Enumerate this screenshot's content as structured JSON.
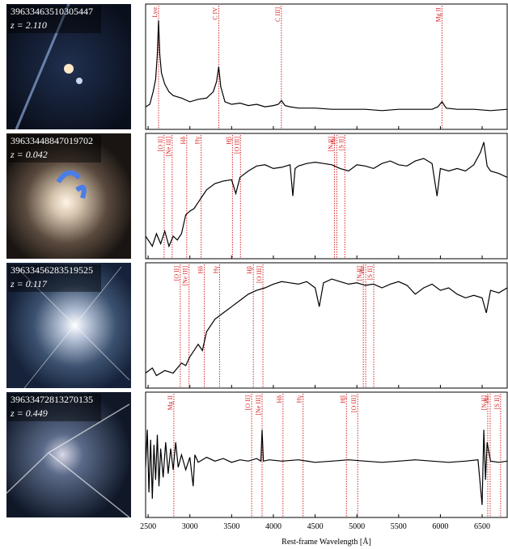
{
  "chart_data": [
    {
      "type": "line",
      "id": "39633463510305447",
      "redshift": "z = 2.110",
      "xlim": [
        2470,
        6800
      ],
      "ylim": [
        0,
        1
      ],
      "color": "#000000",
      "x": [
        2470,
        2520,
        2560,
        2590,
        2610,
        2625,
        2640,
        2660,
        2700,
        2750,
        2800,
        2900,
        3000,
        3100,
        3200,
        3280,
        3320,
        3346,
        3370,
        3420,
        3500,
        3600,
        3700,
        3800,
        3900,
        4000,
        4060,
        4096,
        4140,
        4200,
        4300,
        4500,
        4700,
        4900,
        5100,
        5300,
        5500,
        5700,
        5900,
        5970,
        6019,
        6070,
        6200,
        6400,
        6600,
        6800
      ],
      "values": [
        0.18,
        0.2,
        0.3,
        0.4,
        0.6,
        0.87,
        0.6,
        0.45,
        0.36,
        0.3,
        0.27,
        0.25,
        0.22,
        0.24,
        0.25,
        0.3,
        0.38,
        0.5,
        0.34,
        0.22,
        0.2,
        0.21,
        0.19,
        0.2,
        0.18,
        0.19,
        0.2,
        0.23,
        0.19,
        0.18,
        0.17,
        0.17,
        0.16,
        0.16,
        0.16,
        0.15,
        0.16,
        0.16,
        0.16,
        0.18,
        0.22,
        0.17,
        0.16,
        0.16,
        0.15,
        0.16
      ],
      "lines": [
        {
          "label": "Lyα",
          "x": 2625
        },
        {
          "label": "C IV",
          "x": 3346
        },
        {
          "label": "C III]",
          "x": 4096
        },
        {
          "label": "Mg II",
          "x": 6019
        }
      ]
    },
    {
      "type": "line",
      "id": "39633448847019702",
      "redshift": "z = 0.042",
      "xlim": [
        2470,
        6800
      ],
      "ylim": [
        0,
        1
      ],
      "color": "#000000",
      "x": [
        2470,
        2550,
        2600,
        2650,
        2700,
        2750,
        2800,
        2850,
        2900,
        2950,
        3000,
        3050,
        3100,
        3150,
        3200,
        3300,
        3400,
        3500,
        3550,
        3600,
        3700,
        3800,
        3900,
        4000,
        4100,
        4200,
        4233,
        4260,
        4300,
        4400,
        4500,
        4600,
        4700,
        4800,
        4900,
        5000,
        5100,
        5200,
        5300,
        5400,
        5500,
        5600,
        5700,
        5800,
        5900,
        5960,
        6000,
        6100,
        6200,
        6300,
        6400,
        6480,
        6520,
        6560,
        6600,
        6700,
        6800
      ],
      "values": [
        0.18,
        0.1,
        0.2,
        0.12,
        0.22,
        0.1,
        0.18,
        0.15,
        0.2,
        0.35,
        0.38,
        0.4,
        0.45,
        0.5,
        0.55,
        0.6,
        0.62,
        0.63,
        0.52,
        0.65,
        0.7,
        0.74,
        0.75,
        0.72,
        0.73,
        0.75,
        0.5,
        0.72,
        0.74,
        0.76,
        0.77,
        0.76,
        0.75,
        0.72,
        0.7,
        0.75,
        0.74,
        0.72,
        0.76,
        0.78,
        0.75,
        0.74,
        0.78,
        0.8,
        0.76,
        0.5,
        0.72,
        0.7,
        0.72,
        0.7,
        0.75,
        0.85,
        0.93,
        0.74,
        0.7,
        0.68,
        0.65
      ],
      "lines": [
        {
          "label": "[O II]",
          "x": 2692
        },
        {
          "label": "[Ne III]",
          "x": 2788
        },
        {
          "label": "Hδ",
          "x": 2962
        },
        {
          "label": "Hγ",
          "x": 3135
        },
        {
          "label": "Hβ",
          "x": 3510
        },
        {
          "label": "[O III]",
          "x": 3606
        },
        {
          "label": "[N II]",
          "x": 4731
        },
        {
          "label": "Hα",
          "x": 4760
        },
        {
          "label": "[S II]",
          "x": 4856
        }
      ]
    },
    {
      "type": "line",
      "id": "39633456283519525",
      "redshift": "z = 0.117",
      "xlim": [
        2470,
        6800
      ],
      "ylim": [
        0,
        1
      ],
      "color": "#000000",
      "x": [
        2470,
        2550,
        2600,
        2700,
        2800,
        2900,
        2950,
        3000,
        3100,
        3150,
        3200,
        3300,
        3400,
        3500,
        3600,
        3700,
        3800,
        3900,
        4000,
        4100,
        4200,
        4300,
        4400,
        4500,
        4550,
        4600,
        4700,
        4800,
        4900,
        5000,
        5100,
        5200,
        5300,
        5400,
        5500,
        5600,
        5700,
        5800,
        5900,
        6000,
        6100,
        6200,
        6300,
        6400,
        6500,
        6550,
        6600,
        6700,
        6800
      ],
      "values": [
        0.12,
        0.16,
        0.1,
        0.14,
        0.12,
        0.2,
        0.18,
        0.25,
        0.35,
        0.3,
        0.45,
        0.55,
        0.6,
        0.65,
        0.7,
        0.75,
        0.78,
        0.8,
        0.83,
        0.85,
        0.84,
        0.83,
        0.85,
        0.8,
        0.65,
        0.84,
        0.87,
        0.85,
        0.83,
        0.84,
        0.82,
        0.83,
        0.8,
        0.83,
        0.85,
        0.82,
        0.75,
        0.8,
        0.83,
        0.78,
        0.8,
        0.75,
        0.72,
        0.74,
        0.72,
        0.6,
        0.78,
        0.76,
        0.8
      ],
      "lines": [
        {
          "label": "[O II]",
          "x": 2885
        },
        {
          "label": "[Ne III]",
          "x": 2990
        },
        {
          "label": "Hδ",
          "x": 3173
        },
        {
          "label": "Hγ",
          "x": 3356
        },
        {
          "label": "Hβ",
          "x": 3760
        },
        {
          "label": "[O III]",
          "x": 3875
        },
        {
          "label": "[N II]",
          "x": 5077
        },
        {
          "label": "Hα",
          "x": 5106
        },
        {
          "label": "[S II]",
          "x": 5202
        }
      ]
    },
    {
      "type": "line",
      "id": "39633472813270135",
      "redshift": "z = 0.449",
      "xlim": [
        2470,
        6800
      ],
      "ylim": [
        0,
        1
      ],
      "color": "#000000",
      "xlabel": "Rest-frame Wavelength [Å]",
      "xticks": [
        2500,
        3000,
        3500,
        4000,
        4500,
        5000,
        5500,
        6000,
        6500
      ],
      "x": [
        2470,
        2490,
        2510,
        2530,
        2550,
        2570,
        2590,
        2610,
        2630,
        2650,
        2680,
        2710,
        2740,
        2770,
        2800,
        2830,
        2860,
        2900,
        2950,
        3000,
        3040,
        3060,
        3100,
        3200,
        3300,
        3400,
        3500,
        3600,
        3700,
        3800,
        3850,
        3865,
        3880,
        3950,
        4100,
        4300,
        4500,
        4700,
        4900,
        5100,
        5300,
        5500,
        5700,
        5900,
        6100,
        6300,
        6450,
        6500,
        6520,
        6540,
        6560,
        6600,
        6700,
        6800
      ],
      "values": [
        0.4,
        0.7,
        0.2,
        0.62,
        0.15,
        0.58,
        0.3,
        0.66,
        0.25,
        0.55,
        0.32,
        0.6,
        0.35,
        0.55,
        0.38,
        0.6,
        0.4,
        0.5,
        0.38,
        0.48,
        0.25,
        0.5,
        0.44,
        0.48,
        0.45,
        0.47,
        0.44,
        0.46,
        0.45,
        0.47,
        0.45,
        0.7,
        0.45,
        0.46,
        0.45,
        0.46,
        0.44,
        0.45,
        0.46,
        0.45,
        0.44,
        0.45,
        0.46,
        0.45,
        0.44,
        0.45,
        0.46,
        0.1,
        0.7,
        0.3,
        0.6,
        0.45,
        0.44,
        0.45
      ],
      "lines": [
        {
          "label": "Mg II",
          "x": 2808
        },
        {
          "label": "[O II]",
          "x": 3740
        },
        {
          "label": "[Ne III]",
          "x": 3865
        },
        {
          "label": "Hδ",
          "x": 4115
        },
        {
          "label": "Hγ",
          "x": 4356
        },
        {
          "label": "Hβ",
          "x": 4875
        },
        {
          "label": "[O III]",
          "x": 5010
        },
        {
          "label": "[N II]",
          "x": 6567
        },
        {
          "label": "Hα",
          "x": 6596
        },
        {
          "label": "[S II]",
          "x": 6721
        }
      ]
    }
  ]
}
